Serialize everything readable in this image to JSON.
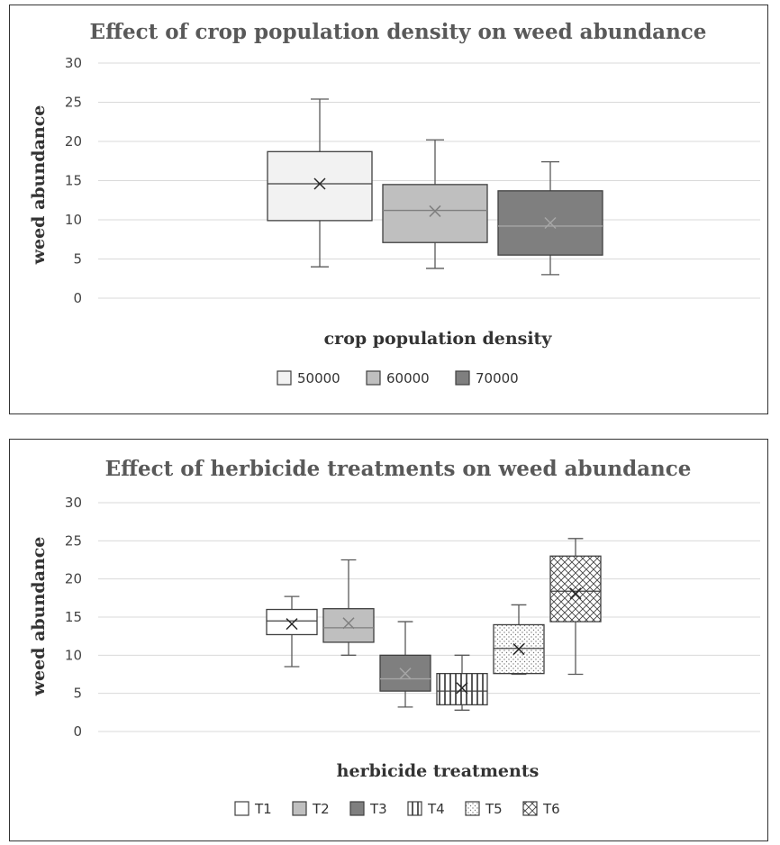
{
  "chart_data": [
    {
      "type": "box",
      "title": "Effect of crop population density on weed abundance",
      "xlabel": "crop population density",
      "ylabel": "weed abundance",
      "ylim": [
        0,
        30
      ],
      "yticks": [
        "0",
        "5",
        "10",
        "15",
        "20",
        "25",
        "30"
      ],
      "grid": true,
      "legend_position": "bottom",
      "series": [
        {
          "name": "50000",
          "min": 4,
          "q1": 9.9,
          "median": 14.6,
          "mean": 14.6,
          "q3": 18.7,
          "max": 25.4,
          "fill": "#f2f2f2",
          "pattern": "solid"
        },
        {
          "name": "60000",
          "min": 3.8,
          "q1": 7.1,
          "median": 11.2,
          "mean": 11.1,
          "q3": 14.5,
          "max": 20.2,
          "fill": "#bfbfbf",
          "pattern": "solid"
        },
        {
          "name": "70000",
          "min": 3,
          "q1": 5.5,
          "median": 9.2,
          "mean": 9.6,
          "q3": 13.7,
          "max": 17.4,
          "fill": "#7f7f7f",
          "pattern": "solid"
        }
      ]
    },
    {
      "type": "box",
      "title": "Effect of herbicide treatments on weed abundance",
      "xlabel": "herbicide treatments",
      "ylabel": "weed abundance",
      "ylim": [
        0,
        30
      ],
      "yticks": [
        "0",
        "5",
        "10",
        "15",
        "20",
        "25",
        "30"
      ],
      "grid": true,
      "legend_position": "bottom",
      "series": [
        {
          "name": "T1",
          "min": 8.5,
          "q1": 12.7,
          "median": 14.5,
          "mean": 14.1,
          "q3": 16,
          "max": 17.7,
          "fill": "#ffffff",
          "pattern": "solid"
        },
        {
          "name": "T2",
          "min": 10,
          "q1": 11.7,
          "median": 13.6,
          "mean": 14.2,
          "q3": 16.1,
          "max": 22.5,
          "fill": "#bfbfbf",
          "pattern": "solid"
        },
        {
          "name": "T3",
          "min": 3.2,
          "q1": 5.3,
          "median": 6.9,
          "mean": 7.6,
          "q3": 10,
          "max": 14.4,
          "fill": "#7f7f7f",
          "pattern": "solid"
        },
        {
          "name": "T4",
          "min": 2.8,
          "q1": 3.5,
          "median": 5.3,
          "mean": 5.7,
          "q3": 7.6,
          "max": 10,
          "fill": "#ffffff",
          "pattern": "vertical"
        },
        {
          "name": "T5",
          "min": 7.5,
          "q1": 7.6,
          "median": 10.9,
          "mean": 10.8,
          "q3": 14,
          "max": 16.6,
          "fill": "#ffffff",
          "pattern": "dots"
        },
        {
          "name": "T6",
          "min": 7.5,
          "q1": 14.4,
          "median": 18.4,
          "mean": 18.1,
          "q3": 23,
          "max": 25.3,
          "fill": "#ffffff",
          "pattern": "crosshatch"
        }
      ]
    }
  ]
}
